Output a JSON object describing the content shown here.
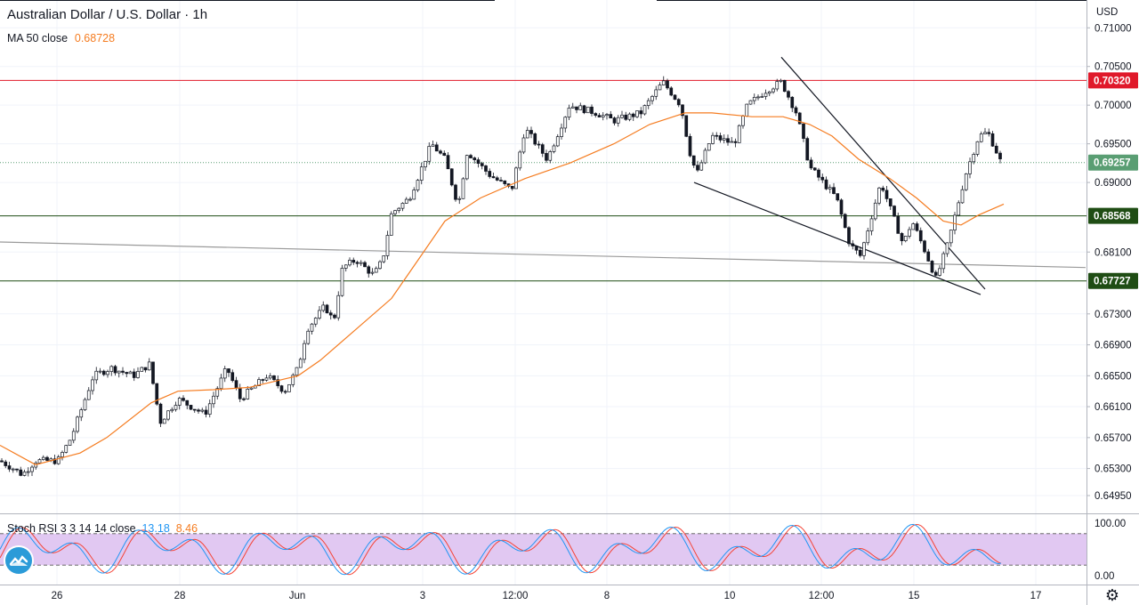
{
  "header": {
    "symbol": "Australian Dollar / U.S. Dollar · 1h",
    "ma_label": "MA 50 close",
    "ma_value": "0.68728",
    "ma_color": "#f57c20"
  },
  "price_axis": {
    "currency": "USD",
    "ticks": [
      "0.71000",
      "0.70500",
      "0.70000",
      "0.69500",
      "0.69000",
      "0.68100",
      "0.67300",
      "0.66900",
      "0.66500",
      "0.66100",
      "0.65700",
      "0.65300",
      "0.64950"
    ]
  },
  "stoch_rsi": {
    "label": "Stoch RSI 3 3 14 14 close",
    "k_value": "13.18",
    "d_value": "8.46",
    "k_color": "#2196f3",
    "d_color": "#f44336",
    "ticks": [
      "100.00",
      "0.00"
    ]
  },
  "time_axis": {
    "labels": [
      "26",
      "28",
      "Jun",
      "3",
      "12:00",
      "8",
      "10",
      "12:00",
      "15",
      "17"
    ]
  },
  "levels": [
    {
      "price": 0.7032,
      "label": "0.70320",
      "color": "#e0192a"
    },
    {
      "price": 0.69257,
      "label": "0.69257",
      "color": "#5a9e73",
      "dotted": true
    },
    {
      "price": 0.68568,
      "label": "0.68568",
      "color": "#1f4d14"
    },
    {
      "price": 0.67727,
      "label": "0.67727",
      "color": "#1f4d14"
    }
  ],
  "chart_data": {
    "type": "candlestick",
    "title": "Australian Dollar / U.S. Dollar · 1h",
    "ylim": [
      0.6472,
      0.7136
    ],
    "horizontal_levels": [
      0.7032,
      0.69257,
      0.68568,
      0.67727
    ],
    "price_path": [
      [
        0,
        0.654
      ],
      [
        15,
        0.653
      ],
      [
        25,
        0.6522
      ],
      [
        40,
        0.654
      ],
      [
        65,
        0.654
      ],
      [
        80,
        0.657
      ],
      [
        105,
        0.665
      ],
      [
        125,
        0.666
      ],
      [
        150,
        0.665
      ],
      [
        168,
        0.6665
      ],
      [
        180,
        0.659
      ],
      [
        200,
        0.662
      ],
      [
        230,
        0.66
      ],
      [
        255,
        0.666
      ],
      [
        270,
        0.662
      ],
      [
        300,
        0.665
      ],
      [
        320,
        0.663
      ],
      [
        335,
        0.666
      ],
      [
        345,
        0.671
      ],
      [
        365,
        0.674
      ],
      [
        375,
        0.672
      ],
      [
        385,
        0.679
      ],
      [
        400,
        0.68
      ],
      [
        420,
        0.678
      ],
      [
        430,
        0.68
      ],
      [
        440,
        0.686
      ],
      [
        460,
        0.688
      ],
      [
        485,
        0.695
      ],
      [
        500,
        0.693
      ],
      [
        515,
        0.687
      ],
      [
        525,
        0.694
      ],
      [
        550,
        0.691
      ],
      [
        575,
        0.689
      ],
      [
        590,
        0.697
      ],
      [
        615,
        0.693
      ],
      [
        640,
        0.7
      ],
      [
        670,
        0.699
      ],
      [
        690,
        0.698
      ],
      [
        720,
        0.699
      ],
      [
        745,
        0.703
      ],
      [
        765,
        0.7
      ],
      [
        775,
        0.694
      ],
      [
        783,
        0.691
      ],
      [
        800,
        0.696
      ],
      [
        825,
        0.695
      ],
      [
        840,
        0.7
      ],
      [
        862,
        0.702
      ],
      [
        878,
        0.703
      ],
      [
        895,
        0.699
      ],
      [
        910,
        0.692
      ],
      [
        940,
        0.688
      ],
      [
        955,
        0.682
      ],
      [
        967,
        0.6805
      ],
      [
        990,
        0.69
      ],
      [
        1015,
        0.682
      ],
      [
        1025,
        0.685
      ],
      [
        1040,
        0.681
      ],
      [
        1052,
        0.6775
      ],
      [
        1065,
        0.682
      ],
      [
        1085,
        0.691
      ],
      [
        1100,
        0.696
      ],
      [
        1110,
        0.6965
      ],
      [
        1118,
        0.6945
      ],
      [
        1127,
        0.692
      ]
    ],
    "ma_path": [
      [
        0,
        0.656
      ],
      [
        40,
        0.6535
      ],
      [
        90,
        0.655
      ],
      [
        120,
        0.657
      ],
      [
        170,
        0.6615
      ],
      [
        200,
        0.663
      ],
      [
        240,
        0.6632
      ],
      [
        280,
        0.6635
      ],
      [
        335,
        0.665
      ],
      [
        360,
        0.667
      ],
      [
        400,
        0.671
      ],
      [
        440,
        0.675
      ],
      [
        470,
        0.68
      ],
      [
        500,
        0.685
      ],
      [
        540,
        0.688
      ],
      [
        590,
        0.6905
      ],
      [
        640,
        0.6925
      ],
      [
        690,
        0.695
      ],
      [
        730,
        0.6975
      ],
      [
        770,
        0.699
      ],
      [
        800,
        0.699
      ],
      [
        845,
        0.6985
      ],
      [
        880,
        0.6985
      ],
      [
        910,
        0.6975
      ],
      [
        935,
        0.696
      ],
      [
        965,
        0.693
      ],
      [
        1000,
        0.6905
      ],
      [
        1030,
        0.688
      ],
      [
        1060,
        0.685
      ],
      [
        1080,
        0.6845
      ],
      [
        1100,
        0.6858
      ],
      [
        1128,
        0.6872
      ]
    ],
    "trendlines": [
      {
        "from": [
          0,
          0.6823
        ],
        "to": [
          1220,
          0.679
        ],
        "color": "#9a9a9a"
      },
      {
        "from": [
          878,
          0.7062
        ],
        "to": [
          1107,
          0.6762
        ],
        "color": "#131722"
      },
      {
        "from": [
          780,
          0.69
        ],
        "to": [
          1102,
          0.6755
        ],
        "color": "#131722"
      }
    ]
  }
}
